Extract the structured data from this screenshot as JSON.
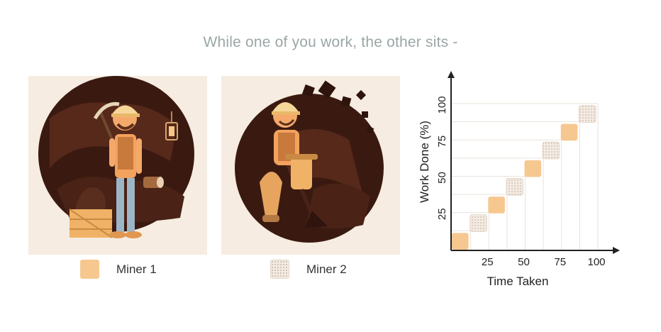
{
  "title": "While one of you work, the other sits -",
  "legend": {
    "miner1": "Miner 1",
    "miner2": "Miner 2"
  },
  "colors": {
    "miner1": "#f6c890",
    "miner2": "#efe4d8",
    "panel_bg": "#f6ece1",
    "cave": "#3a1a10"
  },
  "chart_data": {
    "type": "scatter",
    "xlabel": "Time Taken",
    "ylabel": "Work Done (%)",
    "x_ticks": [
      "25",
      "50",
      "75",
      "100"
    ],
    "y_ticks": [
      "25",
      "50",
      "75",
      "100"
    ],
    "xlim": [
      0,
      110
    ],
    "ylim": [
      0,
      110
    ],
    "series": [
      {
        "name": "Miner 1",
        "style": "solid",
        "x": [
          6.25,
          31.25,
          56.25,
          81.25
        ],
        "y": [
          6.25,
          31.25,
          56.25,
          81.25
        ]
      },
      {
        "name": "Miner 2",
        "style": "dotted",
        "x": [
          18.75,
          43.75,
          68.75,
          93.75
        ],
        "y": [
          18.75,
          43.75,
          68.75,
          93.75
        ]
      }
    ]
  }
}
